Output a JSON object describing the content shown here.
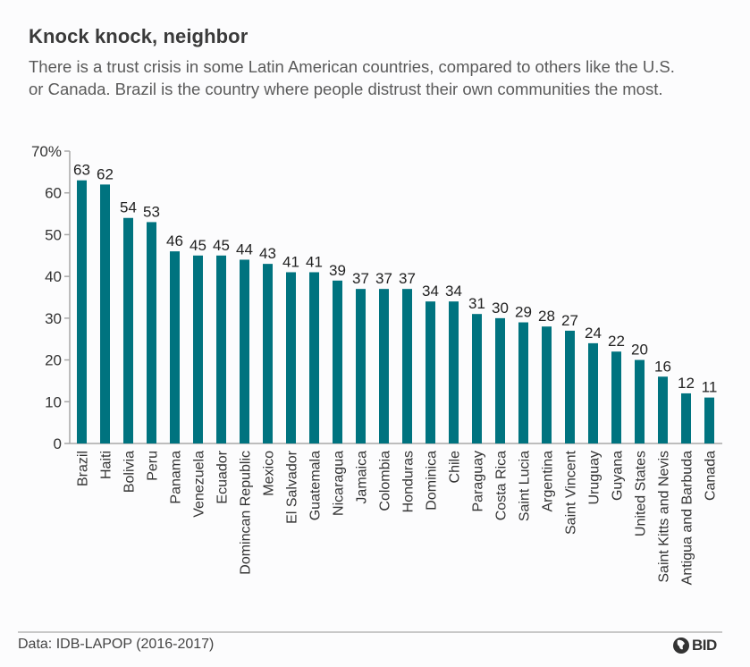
{
  "header": {
    "title": "Knock knock, neighbor",
    "subtitle": "There is a trust crisis in some Latin American countries, compared to others like the U.S. or Canada. Brazil is the country where people distrust their own communities the most."
  },
  "footer": {
    "source": "Data: IDB-LAPOP (2016-2017)",
    "logo_text": "BID",
    "logo_icon": "bid-globe-icon"
  },
  "colors": {
    "bar": "#00737f",
    "axis": "#a8a8a8"
  },
  "chart_data": {
    "type": "bar",
    "title": "Knock knock, neighbor",
    "xlabel": "",
    "ylabel": "",
    "ylim": [
      0,
      70
    ],
    "yticks": [
      0,
      10,
      20,
      30,
      40,
      50,
      60,
      70
    ],
    "ytick_labels": [
      "0",
      "10",
      "20",
      "30",
      "40",
      "50",
      "60",
      "70%"
    ],
    "grid": false,
    "legend": "none",
    "categories": [
      "Brazil",
      "Haiti",
      "Bolivia",
      "Peru",
      "Panama",
      "Venezuela",
      "Ecuador",
      "Domincan Republic",
      "Mexico",
      "El Salvador",
      "Guatemala",
      "Nicaragua",
      "Jamaica",
      "Colombia",
      "Honduras",
      "Dominica",
      "Chile",
      "Paraguay",
      "Costa Rica",
      "Saint Lucia",
      "Argentina",
      "Saint Vincent",
      "Uruguay",
      "Guyana",
      "United States",
      "Saint Kitts and Nevis",
      "Antigua and Barbuda",
      "Canada"
    ],
    "values": [
      63,
      62,
      54,
      53,
      46,
      45,
      45,
      44,
      43,
      41,
      41,
      39,
      37,
      37,
      37,
      34,
      34,
      31,
      30,
      29,
      28,
      27,
      24,
      22,
      20,
      16,
      12,
      11
    ],
    "value_labels": [
      "63",
      "62",
      "54",
      "53",
      "46",
      "45",
      "45",
      "44",
      "43",
      "41",
      "41",
      "39",
      "37",
      "37",
      "37",
      "34",
      "34",
      "31",
      "30",
      "29",
      "28",
      "27",
      "24",
      "22",
      "20",
      "16",
      "12",
      "11"
    ]
  }
}
